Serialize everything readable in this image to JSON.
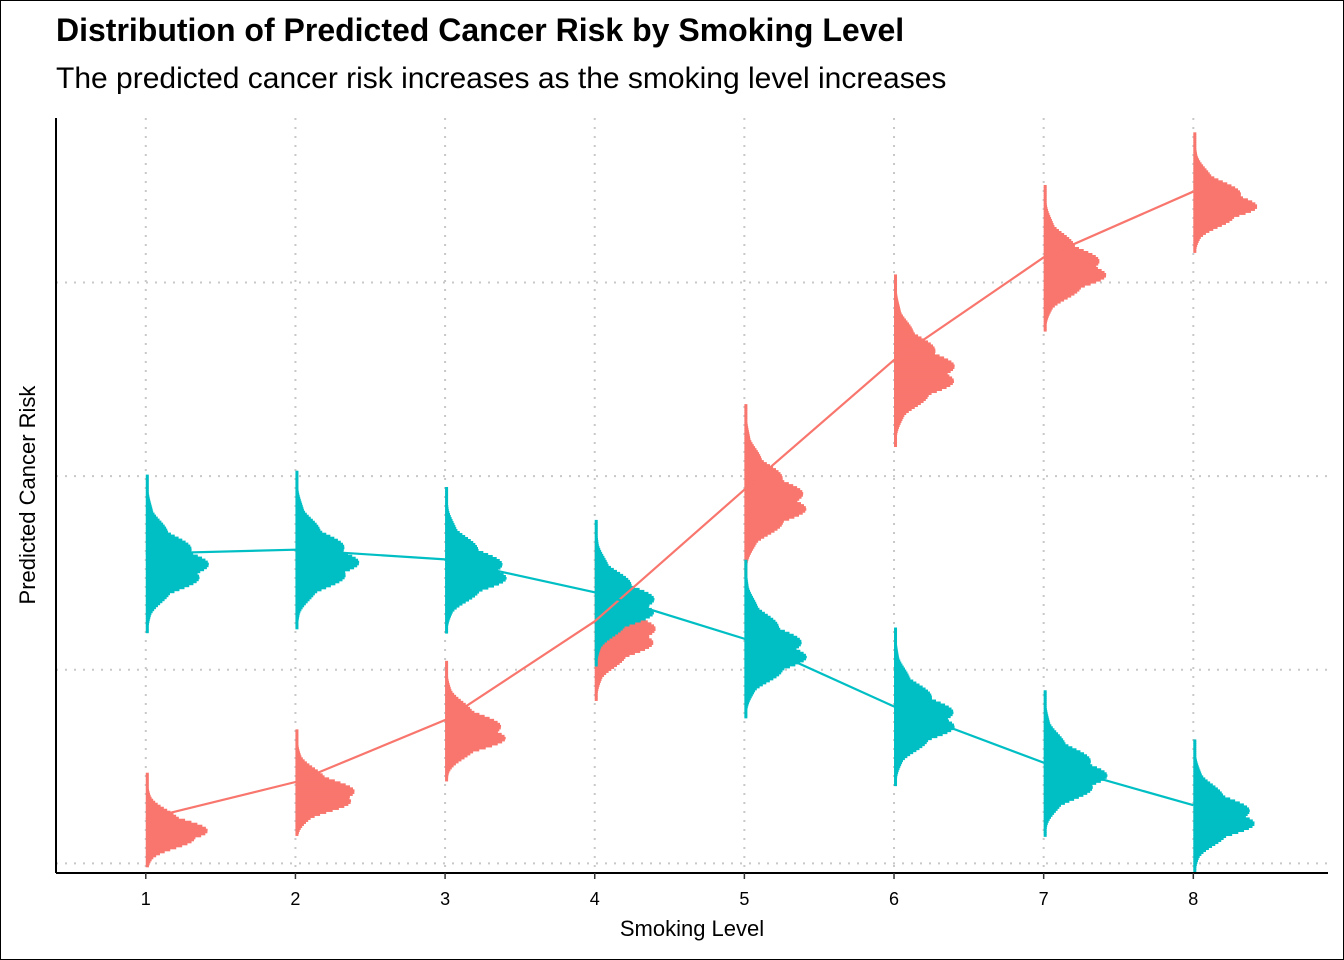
{
  "chart_data": {
    "type": "line",
    "title": "Distribution of Predicted Cancer Risk by Smoking Level",
    "subtitle": "The predicted cancer risk increases as the smoking level increases",
    "xlabel": "Smoking Level",
    "ylabel": "Predicted Cancer Risk",
    "x": [
      1,
      2,
      3,
      4,
      5,
      6,
      7,
      8
    ],
    "x_tick_labels": [
      "1",
      "2",
      "3",
      "4",
      "5",
      "6",
      "7",
      "8"
    ],
    "y_tick_labels_shown": false,
    "xlim": [
      0.4,
      8.9
    ],
    "ylim": [
      0.0,
      0.39
    ],
    "grid": "dotted, major x and y",
    "legend": "none",
    "series": [
      {
        "color": "#F8766D",
        "values": [
          0.028,
          0.047,
          0.079,
          0.13,
          0.198,
          0.265,
          0.318,
          0.352
        ],
        "distribution_sd": [
          0.007,
          0.008,
          0.009,
          0.012,
          0.013,
          0.013,
          0.011,
          0.009
        ],
        "distribution_skew": [
          0.02,
          0.02,
          0.02,
          0.02,
          0.02,
          0.02,
          0.02,
          0.02
        ]
      },
      {
        "color": "#00BFC4",
        "values": [
          0.165,
          0.167,
          0.162,
          0.145,
          0.121,
          0.086,
          0.057,
          0.035
        ],
        "distribution_sd": [
          0.012,
          0.012,
          0.011,
          0.011,
          0.012,
          0.012,
          0.011,
          0.01
        ],
        "distribution_skew": [
          0.02,
          0.02,
          0.02,
          0.02,
          0.02,
          0.02,
          0.02,
          0.02
        ]
      }
    ]
  }
}
